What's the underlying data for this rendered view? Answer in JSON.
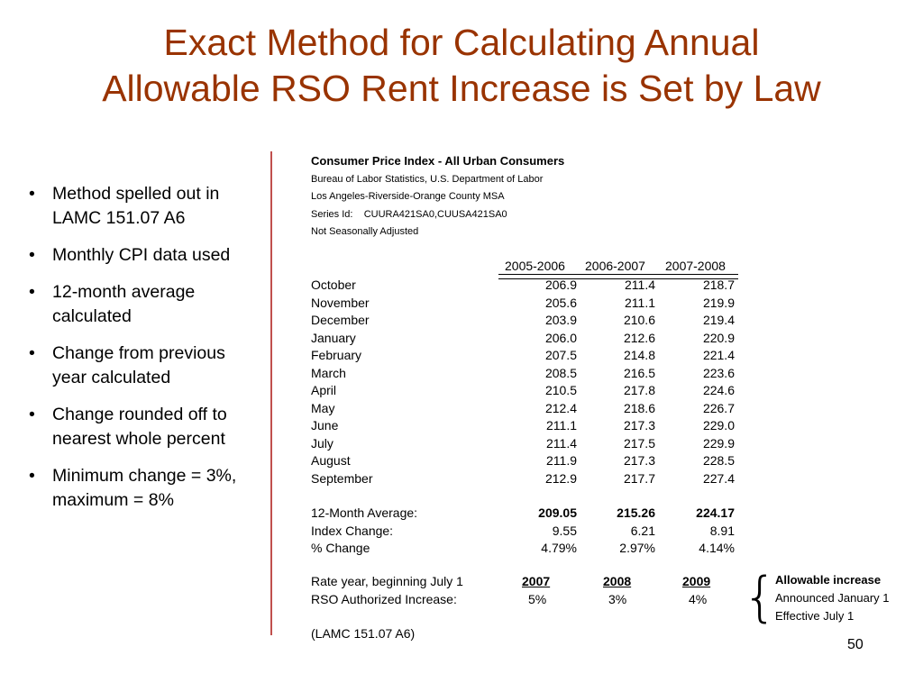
{
  "title": {
    "line1": "Exact Method for Calculating Annual",
    "line2": "Allowable RSO Rent Increase is Set by Law"
  },
  "bullets": [
    "Method spelled out in LAMC 151.07 A6",
    "Monthly CPI data used",
    "12-month average calculated",
    "Change from previous year calculated",
    "Change rounded off to nearest whole percent",
    "Minimum change = 3%, maximum = 8%"
  ],
  "cpi_header": {
    "title": "Consumer Price Index - All Urban Consumers",
    "source": "Bureau of Labor Statistics, U.S. Department of Labor",
    "area": "Los Angeles-Riverside-Orange County MSA",
    "series": "Series Id:    CUURA421SA0,CUUSA421SA0",
    "adjustment": "Not Seasonally Adjusted"
  },
  "columns": [
    "2005-2006",
    "2006-2007",
    "2007-2008"
  ],
  "months": [
    {
      "name": "October",
      "v": [
        "206.9",
        "211.4",
        "218.7"
      ]
    },
    {
      "name": "November",
      "v": [
        "205.6",
        "211.1",
        "219.9"
      ]
    },
    {
      "name": "December",
      "v": [
        "203.9",
        "210.6",
        "219.4"
      ]
    },
    {
      "name": "January",
      "v": [
        "206.0",
        "212.6",
        "220.9"
      ]
    },
    {
      "name": "February",
      "v": [
        "207.5",
        "214.8",
        "221.4"
      ]
    },
    {
      "name": "March",
      "v": [
        "208.5",
        "216.5",
        "223.6"
      ]
    },
    {
      "name": "April",
      "v": [
        "210.5",
        "217.8",
        "224.6"
      ]
    },
    {
      "name": "May",
      "v": [
        "212.4",
        "218.6",
        "226.7"
      ]
    },
    {
      "name": "June",
      "v": [
        "211.1",
        "217.3",
        "229.0"
      ]
    },
    {
      "name": "July",
      "v": [
        "211.4",
        "217.5",
        "229.9"
      ]
    },
    {
      "name": "August",
      "v": [
        "211.9",
        "217.3",
        "228.5"
      ]
    },
    {
      "name": "September",
      "v": [
        "212.9",
        "217.7",
        "227.4"
      ]
    }
  ],
  "summary": {
    "avg_label": "12-Month Average:",
    "avg": [
      "209.05",
      "215.26",
      "224.17"
    ],
    "change_label": "Index Change:",
    "change": [
      "9.55",
      "6.21",
      "8.91"
    ],
    "pct_label": "% Change",
    "pct": [
      "4.79%",
      "2.97%",
      "4.14%"
    ]
  },
  "rates": {
    "year_label": "Rate year, beginning July 1",
    "years": [
      "2007",
      "2008",
      "2009"
    ],
    "increase_label": "RSO Authorized Increase:",
    "increases": [
      "5%",
      "3%",
      "4%"
    ],
    "citation": "(LAMC 151.07 A6)"
  },
  "note": {
    "brace": "{",
    "title": "Allowable increase",
    "line1": "Announced January 1",
    "line2": "Effective July 1"
  },
  "page_number": "50"
}
